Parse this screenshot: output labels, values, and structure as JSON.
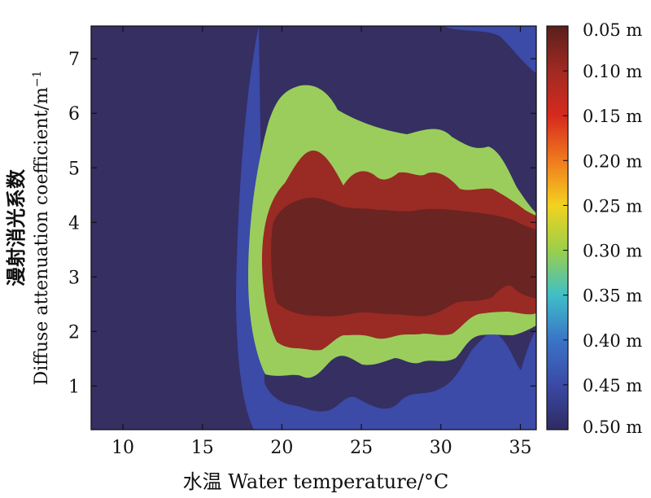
{
  "chart_data": {
    "type": "heatmap",
    "subtype": "filled-contour",
    "xlabel": "水温 Water temperature/°C",
    "ylabel_cn": "漫射消光系数",
    "ylabel_en": "Diffuse attenuation coefficient/m",
    "ylabel_exp": "−1",
    "xlim": [
      8,
      36
    ],
    "ylim": [
      0.2,
      7.6
    ],
    "xticks": [
      10,
      15,
      20,
      25,
      30,
      35
    ],
    "yticks": [
      1,
      2,
      3,
      4,
      5,
      6,
      7
    ],
    "colorbar": {
      "labels": [
        "0.05 m",
        "0.10 m",
        "0.15 m",
        "0.20 m",
        "0.25 m",
        "0.30 m",
        "0.35 m",
        "0.40 m",
        "0.45 m",
        "0.50 m"
      ],
      "values": [
        0.05,
        0.1,
        0.15,
        0.2,
        0.25,
        0.3,
        0.35,
        0.4,
        0.45,
        0.5
      ],
      "top_value": 0.05,
      "bottom_value": 0.5,
      "orientation": "vertical",
      "colors_top_to_bottom": [
        "#5a1f1b",
        "#a02a22",
        "#d62a1e",
        "#f07a1e",
        "#f2d21e",
        "#9bcf4a",
        "#3fbfc8",
        "#3a74c7",
        "#3a4aa6",
        "#2f2a62"
      ]
    },
    "contour_levels": [
      {
        "level": 0.5,
        "region": "background",
        "color": "#352f62"
      },
      {
        "level": 0.45,
        "region": "outer",
        "color": "#3c4aa8"
      },
      {
        "level": 0.3,
        "region": "middle",
        "color": "#9bcd5c"
      },
      {
        "level": 0.1,
        "region": "inner",
        "color": "#9a2a24"
      },
      {
        "level": 0.05,
        "region": "core",
        "color": "#6a2421"
      }
    ]
  }
}
